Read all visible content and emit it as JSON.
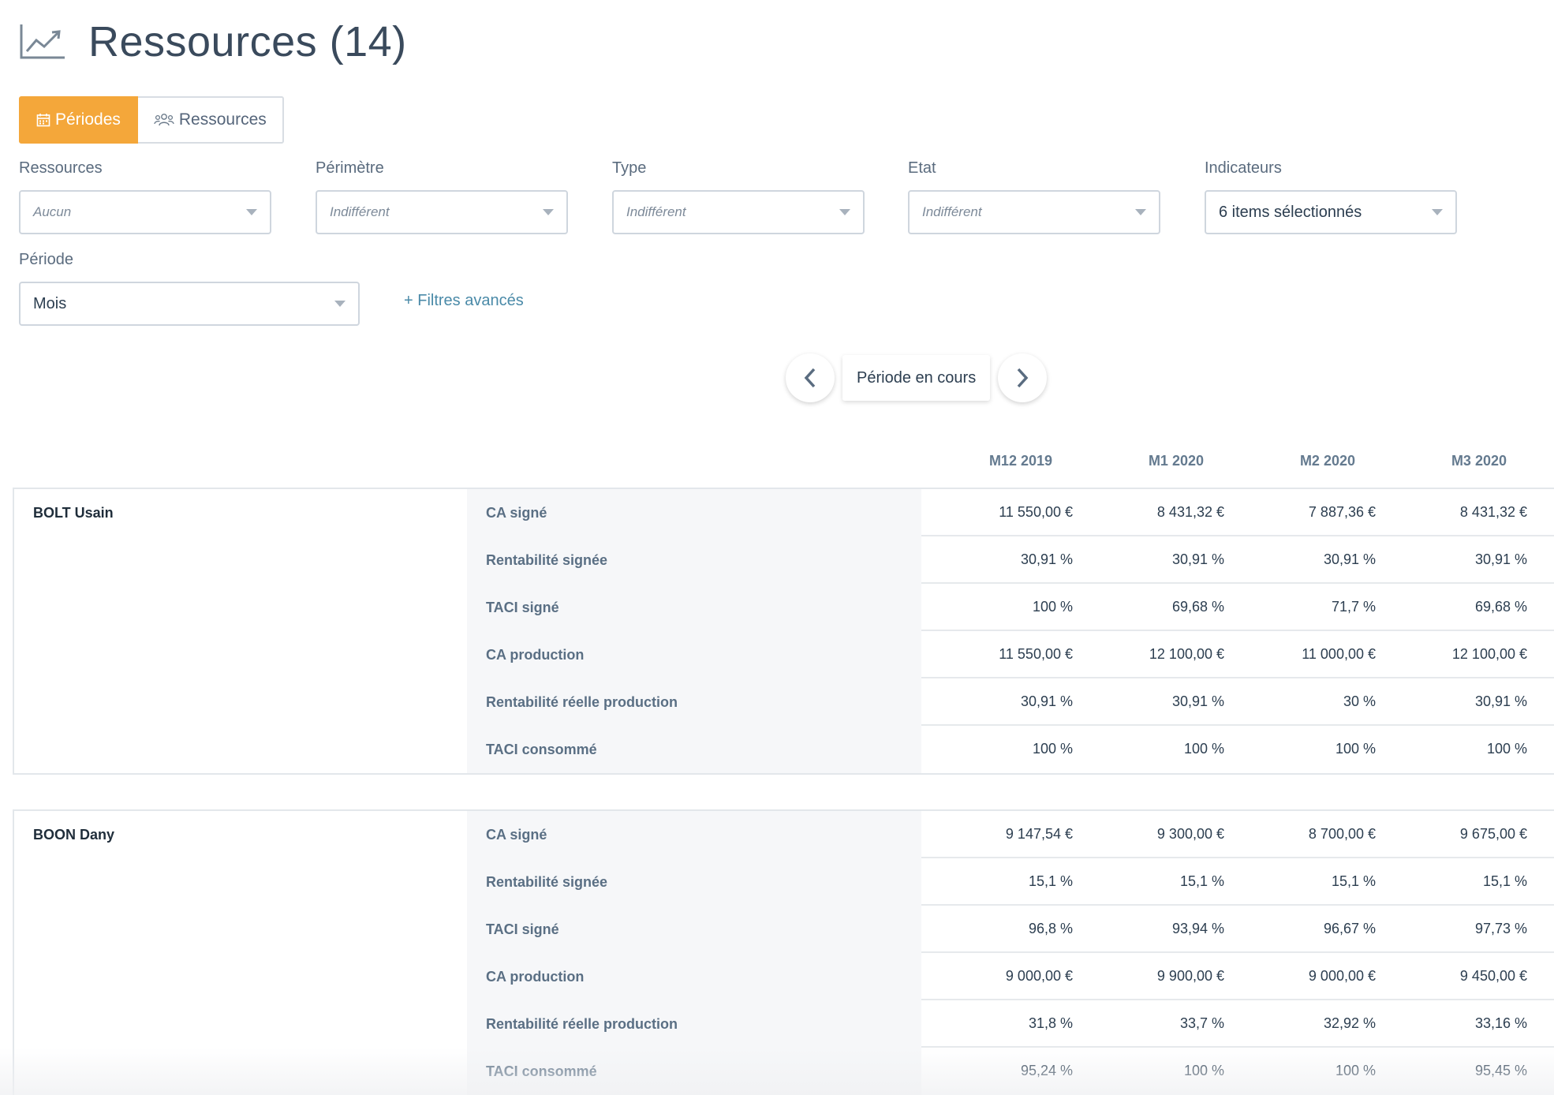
{
  "header": {
    "title": "Ressources (14)",
    "icon": "trending-chart-icon"
  },
  "view_toggle": {
    "periodes": "Périodes",
    "ressources": "Ressources"
  },
  "filters": {
    "ressources": {
      "label": "Ressources",
      "value": "Aucun"
    },
    "perimetre": {
      "label": "Périmètre",
      "value": "Indifférent"
    },
    "type": {
      "label": "Type",
      "value": "Indifférent"
    },
    "etat": {
      "label": "Etat",
      "value": "Indifférent"
    },
    "indicateurs": {
      "label": "Indicateurs",
      "value": "6 items sélectionnés"
    },
    "periode": {
      "label": "Période",
      "value": "Mois"
    },
    "advanced": "+ Filtres avancés"
  },
  "period_nav": {
    "current": "Période en cours"
  },
  "columns": [
    "M12 2019",
    "M1 2020",
    "M2 2020",
    "M3 2020"
  ],
  "resources": [
    {
      "name": "BOLT Usain",
      "metrics": [
        {
          "label": "CA signé",
          "values": [
            "11 550,00 €",
            "8 431,32 €",
            "7 887,36 €",
            "8 431,32 €"
          ]
        },
        {
          "label": "Rentabilité signée",
          "values": [
            "30,91 %",
            "30,91 %",
            "30,91 %",
            "30,91 %"
          ]
        },
        {
          "label": "TACI signé",
          "values": [
            "100 %",
            "69,68 %",
            "71,7 %",
            "69,68 %"
          ]
        },
        {
          "label": "CA production",
          "values": [
            "11 550,00 €",
            "12 100,00 €",
            "11 000,00 €",
            "12 100,00 €"
          ]
        },
        {
          "label": "Rentabilité réelle production",
          "values": [
            "30,91 %",
            "30,91 %",
            "30 %",
            "30,91 %"
          ]
        },
        {
          "label": "TACI consommé",
          "values": [
            "100 %",
            "100 %",
            "100 %",
            "100 %"
          ]
        }
      ]
    },
    {
      "name": "BOON Dany",
      "metrics": [
        {
          "label": "CA signé",
          "values": [
            "9 147,54 €",
            "9 300,00 €",
            "8 700,00 €",
            "9 675,00 €"
          ]
        },
        {
          "label": "Rentabilité signée",
          "values": [
            "15,1 %",
            "15,1 %",
            "15,1 %",
            "15,1 %"
          ]
        },
        {
          "label": "TACI signé",
          "values": [
            "96,8 %",
            "93,94 %",
            "96,67 %",
            "97,73 %"
          ]
        },
        {
          "label": "CA production",
          "values": [
            "9 000,00 €",
            "9 900,00 €",
            "9 000,00 €",
            "9 450,00 €"
          ]
        },
        {
          "label": "Rentabilité réelle production",
          "values": [
            "31,8 %",
            "33,7 %",
            "32,92 %",
            "33,16 %"
          ]
        },
        {
          "label": "TACI consommé",
          "values": [
            "95,24 %",
            "100 %",
            "100 %",
            "95,45 %"
          ]
        }
      ]
    }
  ]
}
